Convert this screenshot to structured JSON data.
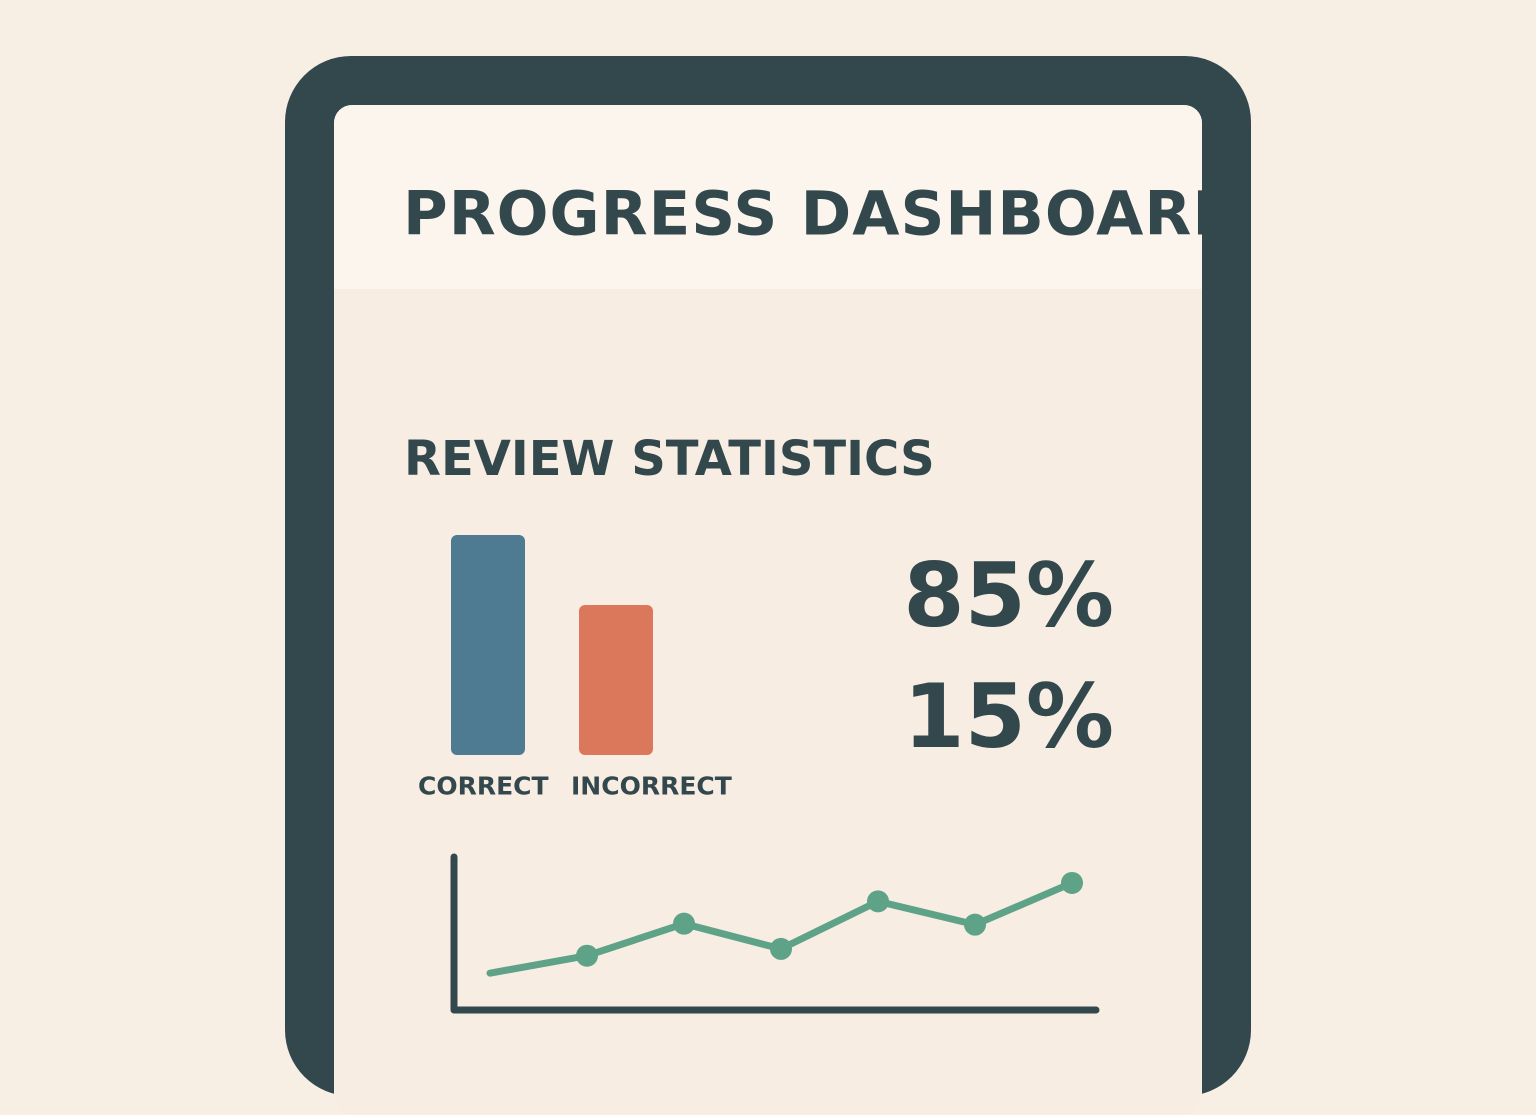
{
  "header": {
    "title": "PROGRESS DASHBOARD"
  },
  "review": {
    "title": "REVIEW STATISTICS",
    "correct_pct_text": "85%",
    "incorrect_pct_text": "15%"
  },
  "colors": {
    "frame": "#33484d",
    "correct": "#4e7a92",
    "incorrect": "#db775a",
    "trend": "#5ea288",
    "background": "#f8efe4"
  },
  "chart_data": [
    {
      "type": "bar",
      "categories": [
        "CORRECT",
        "INCORRECT"
      ],
      "values": [
        100,
        68
      ],
      "colors": [
        "#4e7a92",
        "#db775a"
      ],
      "ylim": [
        0,
        100
      ],
      "title": "",
      "xlabel": "",
      "ylabel": ""
    },
    {
      "type": "line",
      "x": [
        1,
        2,
        3,
        4,
        5,
        6,
        7
      ],
      "y": [
        5,
        23,
        56,
        30,
        79,
        55,
        98
      ],
      "markers": [
        false,
        true,
        true,
        true,
        true,
        true,
        true
      ],
      "ylim": [
        0,
        100
      ],
      "color": "#5ea288",
      "grid": false,
      "title": "",
      "xlabel": "",
      "ylabel": ""
    }
  ]
}
